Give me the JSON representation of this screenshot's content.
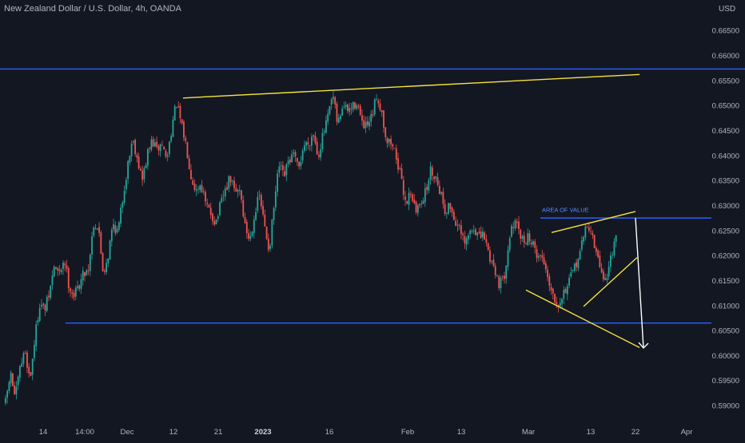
{
  "header": {
    "title": "New Zealand Dollar / U.S. Dollar, 4h, OANDA",
    "currency": "USD"
  },
  "colors": {
    "background": "#131722",
    "up": "#26a69a",
    "down": "#ef5350",
    "trendline": "#f5e33b",
    "level": "#2962ff",
    "arrow": "#ffffff",
    "axis_text": "#b2b5be"
  },
  "chart_data": {
    "type": "candlestick",
    "title": "New Zealand Dollar / U.S. Dollar, 4h, OANDA",
    "ylabel": "USD",
    "ylim": [
      0.5865,
      0.6695
    ],
    "y_ticks": [
      "0.66500",
      "0.66000",
      "0.65500",
      "0.65000",
      "0.64500",
      "0.64000",
      "0.63500",
      "0.63000",
      "0.62500",
      "0.62000",
      "0.61500",
      "0.61000",
      "0.60500",
      "0.60000",
      "0.59500",
      "0.59000"
    ],
    "x_ticks": [
      "14",
      "14:00",
      "Dec",
      "12",
      "21",
      "2023",
      "16",
      "Feb",
      "13",
      "Mar",
      "13",
      "22",
      "Apr"
    ],
    "bold_x_ticks": [
      "2023"
    ],
    "grid": false,
    "price_path": [
      [
        0,
        0.5905
      ],
      [
        4,
        0.5965
      ],
      [
        8,
        0.5915
      ],
      [
        12,
        0.5975
      ],
      [
        16,
        0.601
      ],
      [
        20,
        0.595
      ],
      [
        24,
        0.6035
      ],
      [
        28,
        0.6105
      ],
      [
        32,
        0.609
      ],
      [
        36,
        0.6125
      ],
      [
        40,
        0.618
      ],
      [
        44,
        0.616
      ],
      [
        48,
        0.6195
      ],
      [
        52,
        0.614
      ],
      [
        56,
        0.612
      ],
      [
        60,
        0.614
      ],
      [
        64,
        0.6165
      ],
      [
        68,
        0.6175
      ],
      [
        72,
        0.6265
      ],
      [
        76,
        0.6255
      ],
      [
        80,
        0.6165
      ],
      [
        84,
        0.62
      ],
      [
        88,
        0.6265
      ],
      [
        92,
        0.6245
      ],
      [
        96,
        0.6315
      ],
      [
        100,
        0.638
      ],
      [
        104,
        0.6435
      ],
      [
        108,
        0.6395
      ],
      [
        112,
        0.635
      ],
      [
        116,
        0.64
      ],
      [
        120,
        0.643
      ],
      [
        124,
        0.641
      ],
      [
        128,
        0.6425
      ],
      [
        132,
        0.639
      ],
      [
        136,
        0.6455
      ],
      [
        140,
        0.6505
      ],
      [
        144,
        0.646
      ],
      [
        148,
        0.642
      ],
      [
        152,
        0.636
      ],
      [
        156,
        0.633
      ],
      [
        160,
        0.6345
      ],
      [
        164,
        0.63
      ],
      [
        168,
        0.6285
      ],
      [
        172,
        0.6265
      ],
      [
        176,
        0.63
      ],
      [
        180,
        0.633
      ],
      [
        184,
        0.6355
      ],
      [
        188,
        0.6325
      ],
      [
        192,
        0.6335
      ],
      [
        196,
        0.626
      ],
      [
        200,
        0.623
      ],
      [
        204,
        0.6285
      ],
      [
        208,
        0.632
      ],
      [
        212,
        0.626
      ],
      [
        216,
        0.621
      ],
      [
        220,
        0.63
      ],
      [
        224,
        0.638
      ],
      [
        228,
        0.6355
      ],
      [
        232,
        0.639
      ],
      [
        236,
        0.64
      ],
      [
        240,
        0.637
      ],
      [
        244,
        0.642
      ],
      [
        248,
        0.6425
      ],
      [
        252,
        0.6445
      ],
      [
        256,
        0.64
      ],
      [
        260,
        0.644
      ],
      [
        264,
        0.6475
      ],
      [
        268,
        0.652
      ],
      [
        272,
        0.646
      ],
      [
        276,
        0.65
      ],
      [
        280,
        0.649
      ],
      [
        284,
        0.6495
      ],
      [
        288,
        0.651
      ],
      [
        292,
        0.646
      ],
      [
        296,
        0.6455
      ],
      [
        300,
        0.6475
      ],
      [
        304,
        0.652
      ],
      [
        308,
        0.649
      ],
      [
        312,
        0.643
      ],
      [
        316,
        0.6425
      ],
      [
        320,
        0.64
      ],
      [
        324,
        0.635
      ],
      [
        328,
        0.6305
      ],
      [
        332,
        0.633
      ],
      [
        336,
        0.6285
      ],
      [
        340,
        0.631
      ],
      [
        344,
        0.6325
      ],
      [
        348,
        0.637
      ],
      [
        352,
        0.636
      ],
      [
        356,
        0.633
      ],
      [
        360,
        0.629
      ],
      [
        364,
        0.63
      ],
      [
        368,
        0.627
      ],
      [
        372,
        0.625
      ],
      [
        376,
        0.622
      ],
      [
        380,
        0.6245
      ],
      [
        384,
        0.6255
      ],
      [
        388,
        0.6235
      ],
      [
        392,
        0.624
      ],
      [
        396,
        0.62
      ],
      [
        400,
        0.618
      ],
      [
        404,
        0.6145
      ],
      [
        408,
        0.615
      ],
      [
        412,
        0.623
      ],
      [
        416,
        0.6265
      ],
      [
        420,
        0.625
      ],
      [
        424,
        0.6225
      ],
      [
        428,
        0.624
      ],
      [
        432,
        0.622
      ],
      [
        436,
        0.62
      ],
      [
        440,
        0.6195
      ],
      [
        444,
        0.616
      ],
      [
        448,
        0.6125
      ],
      [
        452,
        0.6105
      ],
      [
        456,
        0.612
      ],
      [
        460,
        0.614
      ],
      [
        464,
        0.616
      ],
      [
        468,
        0.619
      ],
      [
        472,
        0.622
      ],
      [
        476,
        0.6265
      ],
      [
        480,
        0.6245
      ],
      [
        484,
        0.62
      ],
      [
        488,
        0.617
      ],
      [
        492,
        0.6145
      ],
      [
        496,
        0.6205
      ],
      [
        500,
        0.623
      ]
    ],
    "levels": [
      {
        "name": "upper-level",
        "y": 0.6573,
        "x_range": [
          0,
          932
        ]
      },
      {
        "name": "area-of-value-level",
        "y": 0.6275,
        "x_range": [
          676,
          890
        ]
      },
      {
        "name": "lower-level",
        "y": 0.6065,
        "x_range": [
          82,
          890
        ]
      }
    ],
    "trendlines": [
      {
        "name": "top-resistance",
        "from": [
          229,
          0.6515
        ],
        "to": [
          800,
          0.6562
        ]
      },
      {
        "name": "wedge-upper",
        "from": [
          690,
          0.6246
        ],
        "to": [
          795,
          0.6288
        ]
      },
      {
        "name": "wedge-lower-rising",
        "from": [
          730,
          0.6098
        ],
        "to": [
          797,
          0.6196
        ]
      },
      {
        "name": "channel-lower",
        "from": [
          658,
          0.6131
        ],
        "to": [
          800,
          0.6016
        ]
      }
    ],
    "projection_arrow": {
      "from": [
        795,
        0.6275
      ],
      "to": [
        805,
        0.6015
      ]
    },
    "annotations": [
      {
        "text": "AREA OF VALUE",
        "x": 678,
        "y": 0.6287
      }
    ]
  }
}
